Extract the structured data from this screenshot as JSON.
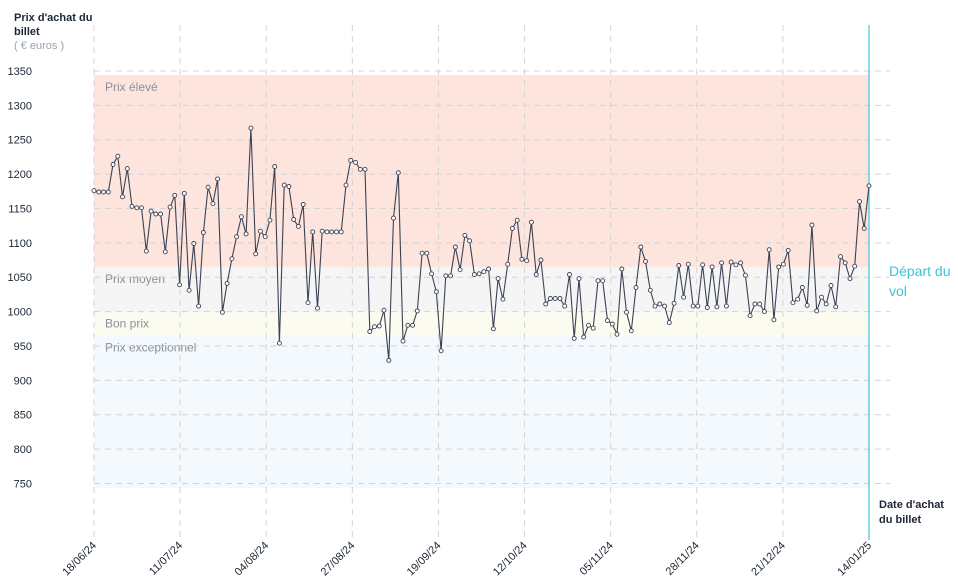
{
  "chart_data": {
    "type": "line",
    "ylabel": "Prix d'achat du billet",
    "yunit": "( € euros )",
    "xlabel": "Date d'achat du billet",
    "event_label": "Départ du vol",
    "ylim": [
      700,
      1350
    ],
    "yticks": [
      750,
      800,
      850,
      900,
      950,
      1000,
      1050,
      1100,
      1150,
      1200,
      1250,
      1300,
      1350
    ],
    "xticks": [
      "18/06/24",
      "11/07/24",
      "04/08/24",
      "27/08/24",
      "19/09/24",
      "12/10/24",
      "05/11/24",
      "28/11/24",
      "21/12/24",
      "14/01/25"
    ],
    "grid": true,
    "zones": [
      {
        "label": "Prix élevé",
        "from": 1065,
        "to": 1350,
        "color": "#fde4dd"
      },
      {
        "label": "Prix moyen",
        "from": 1000,
        "to": 1065,
        "color": "#f5f5f5"
      },
      {
        "label": "Bon prix",
        "from": 965,
        "to": 1000,
        "color": "#fbfbef"
      },
      {
        "label": "Prix exceptionnel",
        "from": 700,
        "to": 965,
        "color": "#f3f9fc"
      }
    ],
    "colors": {
      "line": "#3b4354",
      "event": "#3cc4d6",
      "grid": "#d4d4d4"
    },
    "series": [
      {
        "values": [
          1176,
          1174,
          1174,
          1174,
          1214,
          1226,
          1167,
          1208,
          1153,
          1151,
          1151,
          1088,
          1146,
          1142,
          1142,
          1087,
          1152,
          1169,
          1039,
          1172,
          1031,
          1099,
          1008,
          1115,
          1181,
          1157,
          1193,
          999,
          1041,
          1077,
          1109,
          1138,
          1113,
          1267,
          1084,
          1117,
          1109,
          1133,
          1211,
          954,
          1184,
          1182,
          1134,
          1124,
          1156,
          1013,
          1116,
          1005,
          1117,
          1116,
          1116,
          1116,
          1116,
          1184,
          1220,
          1217,
          1207,
          1207,
          971,
          978,
          979,
          1002,
          929,
          1136,
          1202,
          957,
          980,
          980,
          1001,
          1085,
          1085,
          1055,
          1029,
          943,
          1052,
          1052,
          1094,
          1061,
          1111,
          1103,
          1054,
          1055,
          1058,
          1062,
          975,
          1048,
          1018,
          1069,
          1121,
          1133,
          1076,
          1074,
          1130,
          1054,
          1075,
          1011,
          1019,
          1019,
          1019,
          1008,
          1054,
          961,
          1048,
          963,
          980,
          976,
          1045,
          1045,
          987,
          982,
          967,
          1062,
          999,
          972,
          1035,
          1094,
          1073,
          1031,
          1008,
          1011,
          1008,
          984,
          1012,
          1067,
          1021,
          1069,
          1008,
          1008,
          1068,
          1006,
          1065,
          1007,
          1071,
          1008,
          1072,
          1068,
          1071,
          1053,
          994,
          1011,
          1011,
          1000,
          1090,
          988,
          1065,
          1069,
          1089,
          1013,
          1018,
          1035,
          1009,
          1126,
          1001,
          1021,
          1011,
          1038,
          1007,
          1080,
          1071,
          1048,
          1066,
          1160,
          1121,
          1183
        ]
      }
    ]
  }
}
